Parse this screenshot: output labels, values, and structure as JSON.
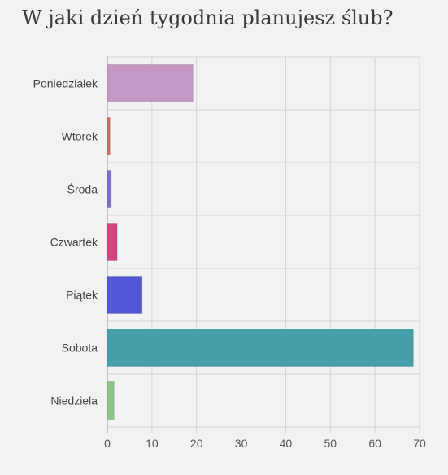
{
  "chart_data": {
    "type": "bar",
    "orientation": "horizontal",
    "title": "W jaki dzień tygodnia planujesz ślub?",
    "categories": [
      "Poniedziałek",
      "Wtorek",
      "Środa",
      "Czwartek",
      "Piątek",
      "Sobota",
      "Niedziela"
    ],
    "values": [
      19.2,
      0.6,
      0.9,
      2.2,
      7.8,
      68.6,
      1.5
    ],
    "colors": [
      "#c597c4",
      "#e06464",
      "#7f6fd0",
      "#d3457e",
      "#5257d6",
      "#459ea9",
      "#8cc489"
    ],
    "xlim": [
      0,
      70
    ],
    "xticks": [
      "0",
      "10",
      "20",
      "30",
      "40",
      "50",
      "60",
      "70"
    ],
    "grid": true,
    "xlabel": "",
    "ylabel": ""
  }
}
